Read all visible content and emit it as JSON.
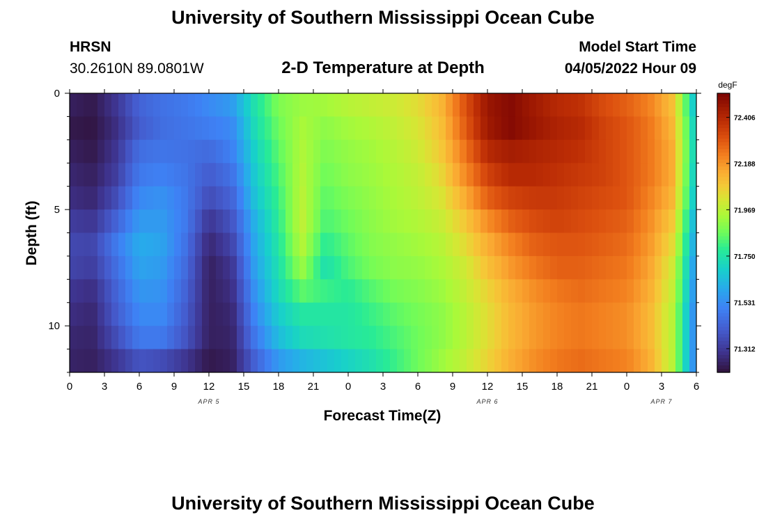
{
  "header": {
    "title": "University of Southern Mississippi Ocean Cube",
    "station_code": "HRSN",
    "station_coords": "30.2610N  89.0801W",
    "subtitle": "2-D Temperature at Depth",
    "model_start_label": "Model Start Time",
    "model_start_value": "04/05/2022 Hour 09"
  },
  "footer": {
    "title": "University of Southern Mississippi Ocean Cube"
  },
  "chart_data": {
    "type": "heatmap",
    "title": "2-D Temperature at Depth",
    "xlabel": "Forecast Time(Z)",
    "ylabel": "Depth (ft)",
    "x_tick_labels": [
      "0",
      "3",
      "6",
      "9",
      "12",
      "15",
      "18",
      "21",
      "0",
      "3",
      "6",
      "9",
      "12",
      "15",
      "18",
      "21",
      "0",
      "3",
      "6"
    ],
    "x_date_labels": [
      {
        "label": "APR 5",
        "tick_index": 4
      },
      {
        "label": "APR 6",
        "tick_index": 12
      },
      {
        "label": "APR 7",
        "tick_index": 17
      }
    ],
    "y_tick_labels": [
      "0",
      "5",
      "10"
    ],
    "ylim": [
      0,
      12
    ],
    "y_inverted": true,
    "x_hours_range": [
      0,
      54
    ],
    "colorbar": {
      "unit": "degF",
      "tick_labels": [
        "72.406",
        "72.188",
        "71.969",
        "71.750",
        "71.531",
        "71.312"
      ],
      "range": [
        71.2,
        72.52
      ]
    },
    "time_hours": [
      0,
      2,
      4,
      6,
      8,
      10,
      12,
      14,
      16,
      18,
      20,
      22,
      24,
      26,
      28,
      30,
      32,
      34,
      36,
      38,
      40,
      42,
      44,
      46,
      48,
      50,
      52,
      54
    ],
    "depth_rows": [
      {
        "depth": 0.5,
        "values": [
          71.24,
          71.22,
          71.3,
          71.42,
          71.46,
          71.48,
          71.52,
          71.56,
          71.75,
          71.88,
          71.92,
          71.93,
          71.96,
          71.98,
          72.0,
          72.04,
          72.12,
          72.3,
          72.46,
          72.5,
          72.45,
          72.4,
          72.38,
          72.32,
          72.28,
          72.22,
          72.1,
          71.62
        ]
      },
      {
        "depth": 1.5,
        "values": [
          71.22,
          71.21,
          71.28,
          71.4,
          71.45,
          71.47,
          71.49,
          71.52,
          71.73,
          71.86,
          71.94,
          71.9,
          71.93,
          71.95,
          71.98,
          72.02,
          72.1,
          72.28,
          72.45,
          72.5,
          72.46,
          72.42,
          72.4,
          72.34,
          72.3,
          72.24,
          72.12,
          71.65
        ]
      },
      {
        "depth": 2.5,
        "values": [
          71.24,
          71.22,
          71.3,
          71.45,
          71.47,
          71.46,
          71.44,
          71.5,
          71.7,
          71.84,
          71.95,
          71.88,
          71.91,
          71.93,
          71.96,
          72.0,
          72.08,
          72.24,
          72.4,
          72.44,
          72.42,
          72.4,
          72.38,
          72.34,
          72.3,
          72.24,
          72.14,
          71.66
        ]
      },
      {
        "depth": 3.5,
        "values": [
          71.26,
          71.24,
          71.32,
          71.48,
          71.5,
          71.47,
          71.4,
          71.46,
          71.68,
          71.82,
          71.96,
          71.86,
          71.9,
          71.92,
          71.95,
          71.98,
          72.05,
          72.2,
          72.34,
          72.4,
          72.4,
          72.38,
          72.36,
          72.34,
          72.3,
          72.24,
          72.14,
          71.64
        ]
      },
      {
        "depth": 4.5,
        "values": [
          71.28,
          71.26,
          71.36,
          71.52,
          71.54,
          71.48,
          71.36,
          71.42,
          71.66,
          71.8,
          71.97,
          71.84,
          71.88,
          71.91,
          71.94,
          71.97,
          72.02,
          72.14,
          72.28,
          72.34,
          72.36,
          72.36,
          72.34,
          72.32,
          72.3,
          72.22,
          72.12,
          71.62
        ]
      },
      {
        "depth": 5.5,
        "values": [
          71.32,
          71.3,
          71.42,
          71.56,
          71.56,
          71.48,
          71.3,
          71.38,
          71.62,
          71.78,
          71.98,
          71.82,
          71.86,
          71.9,
          71.93,
          71.95,
          71.99,
          72.08,
          72.2,
          72.28,
          72.32,
          72.34,
          72.32,
          72.3,
          72.28,
          72.2,
          72.08,
          71.58
        ]
      },
      {
        "depth": 6.5,
        "values": [
          71.35,
          71.34,
          71.48,
          71.6,
          71.58,
          71.46,
          71.26,
          71.34,
          71.6,
          71.76,
          71.96,
          71.78,
          71.84,
          71.89,
          71.91,
          71.93,
          71.96,
          72.04,
          72.14,
          72.22,
          72.28,
          72.3,
          72.3,
          72.28,
          72.26,
          72.18,
          72.04,
          71.55
        ]
      },
      {
        "depth": 7.5,
        "values": [
          71.34,
          71.32,
          71.45,
          71.58,
          71.56,
          71.44,
          71.24,
          71.3,
          71.58,
          71.74,
          71.92,
          71.74,
          71.82,
          71.87,
          71.9,
          71.91,
          71.94,
          72.0,
          72.1,
          72.18,
          72.24,
          72.28,
          72.28,
          72.26,
          72.24,
          72.16,
          72.0,
          71.52
        ]
      },
      {
        "depth": 8.5,
        "values": [
          71.3,
          71.28,
          71.42,
          71.55,
          71.54,
          71.42,
          71.24,
          71.28,
          71.55,
          71.72,
          71.84,
          71.8,
          71.78,
          71.83,
          71.87,
          71.89,
          71.92,
          71.98,
          72.06,
          72.14,
          72.2,
          72.24,
          72.26,
          72.24,
          72.22,
          72.14,
          71.98,
          71.5
        ]
      },
      {
        "depth": 9.5,
        "values": [
          71.28,
          71.26,
          71.4,
          71.52,
          71.52,
          71.4,
          71.24,
          71.26,
          71.52,
          71.68,
          71.76,
          71.76,
          71.76,
          71.8,
          71.84,
          71.87,
          71.9,
          71.96,
          72.04,
          72.12,
          72.18,
          72.22,
          72.24,
          72.22,
          72.2,
          72.12,
          71.96,
          71.48
        ]
      },
      {
        "depth": 10.5,
        "values": [
          71.26,
          71.25,
          71.36,
          71.48,
          71.48,
          71.38,
          71.24,
          71.25,
          71.48,
          71.64,
          71.72,
          71.74,
          71.76,
          71.78,
          71.82,
          71.86,
          71.9,
          71.96,
          72.04,
          72.12,
          72.18,
          72.22,
          72.24,
          72.22,
          72.2,
          72.12,
          71.96,
          71.48
        ]
      },
      {
        "depth": 11.5,
        "values": [
          71.25,
          71.24,
          71.3,
          71.38,
          71.36,
          71.3,
          71.22,
          71.24,
          71.42,
          71.56,
          71.62,
          71.66,
          71.7,
          71.74,
          71.8,
          71.86,
          71.92,
          71.98,
          72.06,
          72.14,
          72.2,
          72.24,
          72.26,
          72.24,
          72.22,
          72.14,
          71.96,
          71.48
        ]
      }
    ],
    "grid": false,
    "legend": "right colorbar"
  }
}
